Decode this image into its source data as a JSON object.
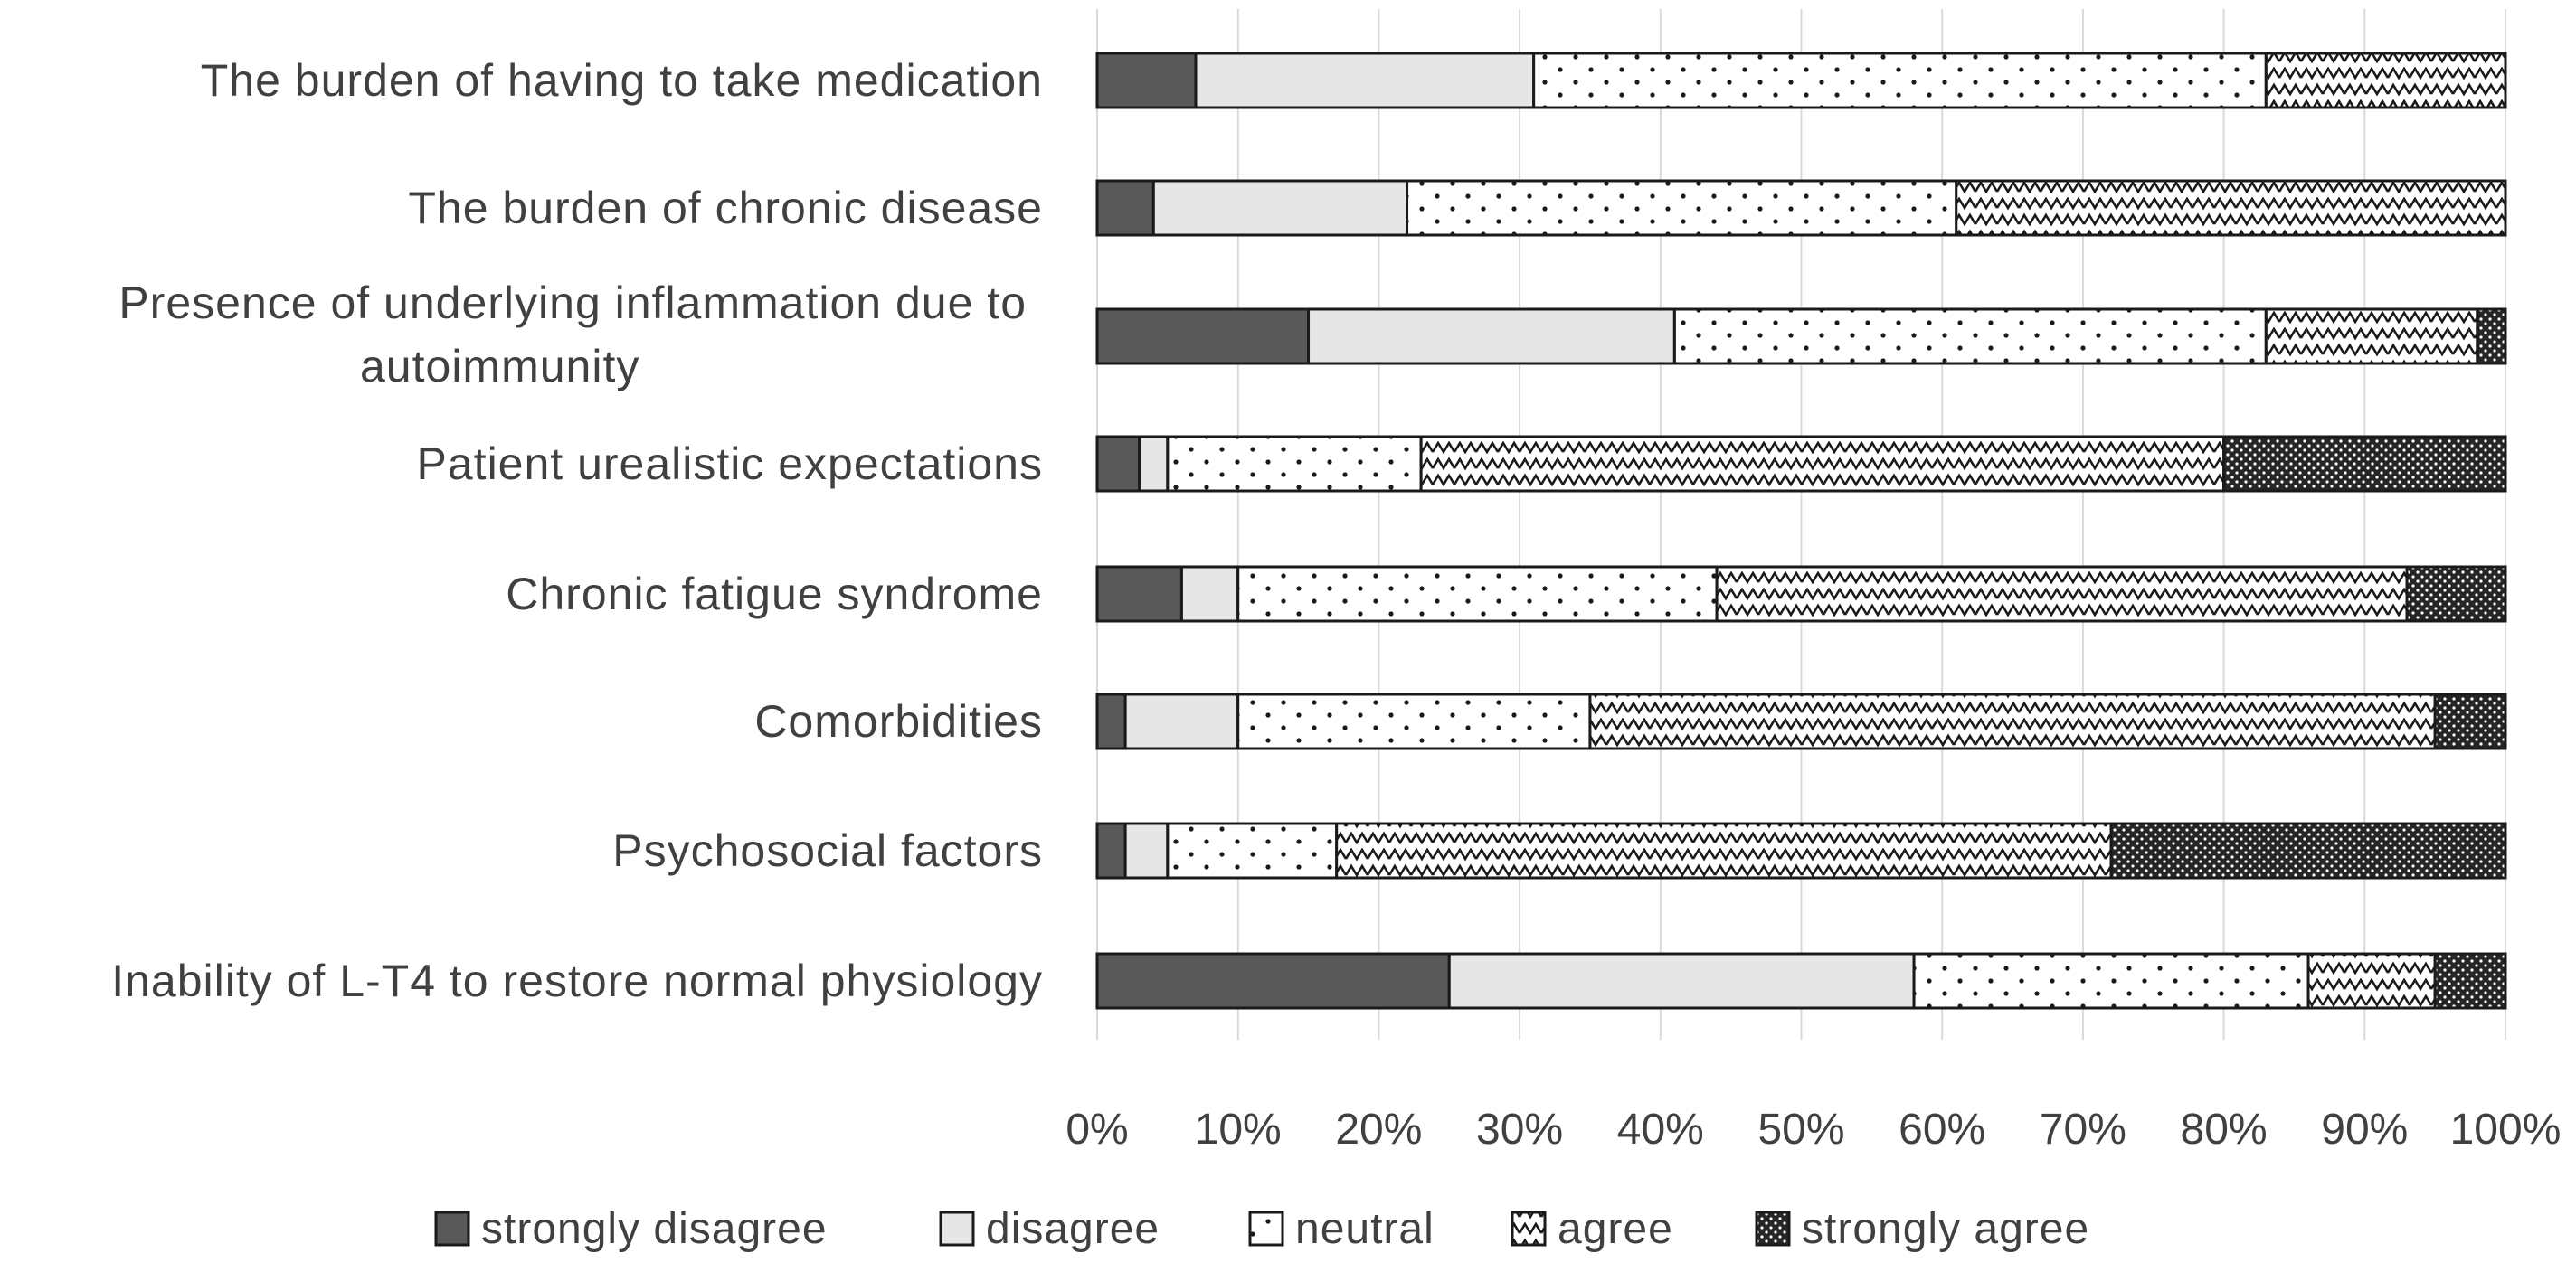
{
  "chart_data": {
    "type": "bar",
    "orientation": "horizontal",
    "stacked": true,
    "percent_stacked": true,
    "title": "",
    "xlabel": "",
    "ylabel": "",
    "xlim": [
      0,
      100
    ],
    "grid": true,
    "legend_position": "bottom",
    "categories": [
      [
        "The burden of having to take medication"
      ],
      [
        "The burden of chronic disease"
      ],
      [
        "Presence of underlying inflammation due to",
        "autoimmunity"
      ],
      [
        "Patient urealistic expectations"
      ],
      [
        "Chronic fatigue syndrome"
      ],
      [
        "Comorbidities"
      ],
      [
        "Psychosocial factors"
      ],
      [
        "Inability of L-T4 to restore normal physiology"
      ]
    ],
    "series": [
      {
        "name": "strongly disagree",
        "color": "#595959",
        "pattern": "solid-dark",
        "values": [
          7,
          4,
          15,
          3,
          6,
          2,
          2,
          25
        ]
      },
      {
        "name": "disagree",
        "color": "#e6e6e6",
        "pattern": "solid-light",
        "values": [
          24,
          18,
          26,
          2,
          4,
          8,
          3,
          33
        ]
      },
      {
        "name": "neutral",
        "color": "#ffffff",
        "pattern": "dots",
        "values": [
          52,
          39,
          42,
          18,
          34,
          25,
          12,
          28
        ]
      },
      {
        "name": "agree",
        "color": "#ffffff",
        "pattern": "zigzag",
        "values": [
          17,
          39,
          15,
          57,
          49,
          60,
          55,
          9
        ]
      },
      {
        "name": "strongly agree",
        "color": "#262626",
        "pattern": "dense-dots",
        "values": [
          0,
          0,
          2,
          20,
          7,
          5,
          28,
          5
        ]
      }
    ],
    "ticks": [
      "0%",
      "10%",
      "20%",
      "30%",
      "40%",
      "50%",
      "60%",
      "70%",
      "80%",
      "90%",
      "100%"
    ]
  }
}
